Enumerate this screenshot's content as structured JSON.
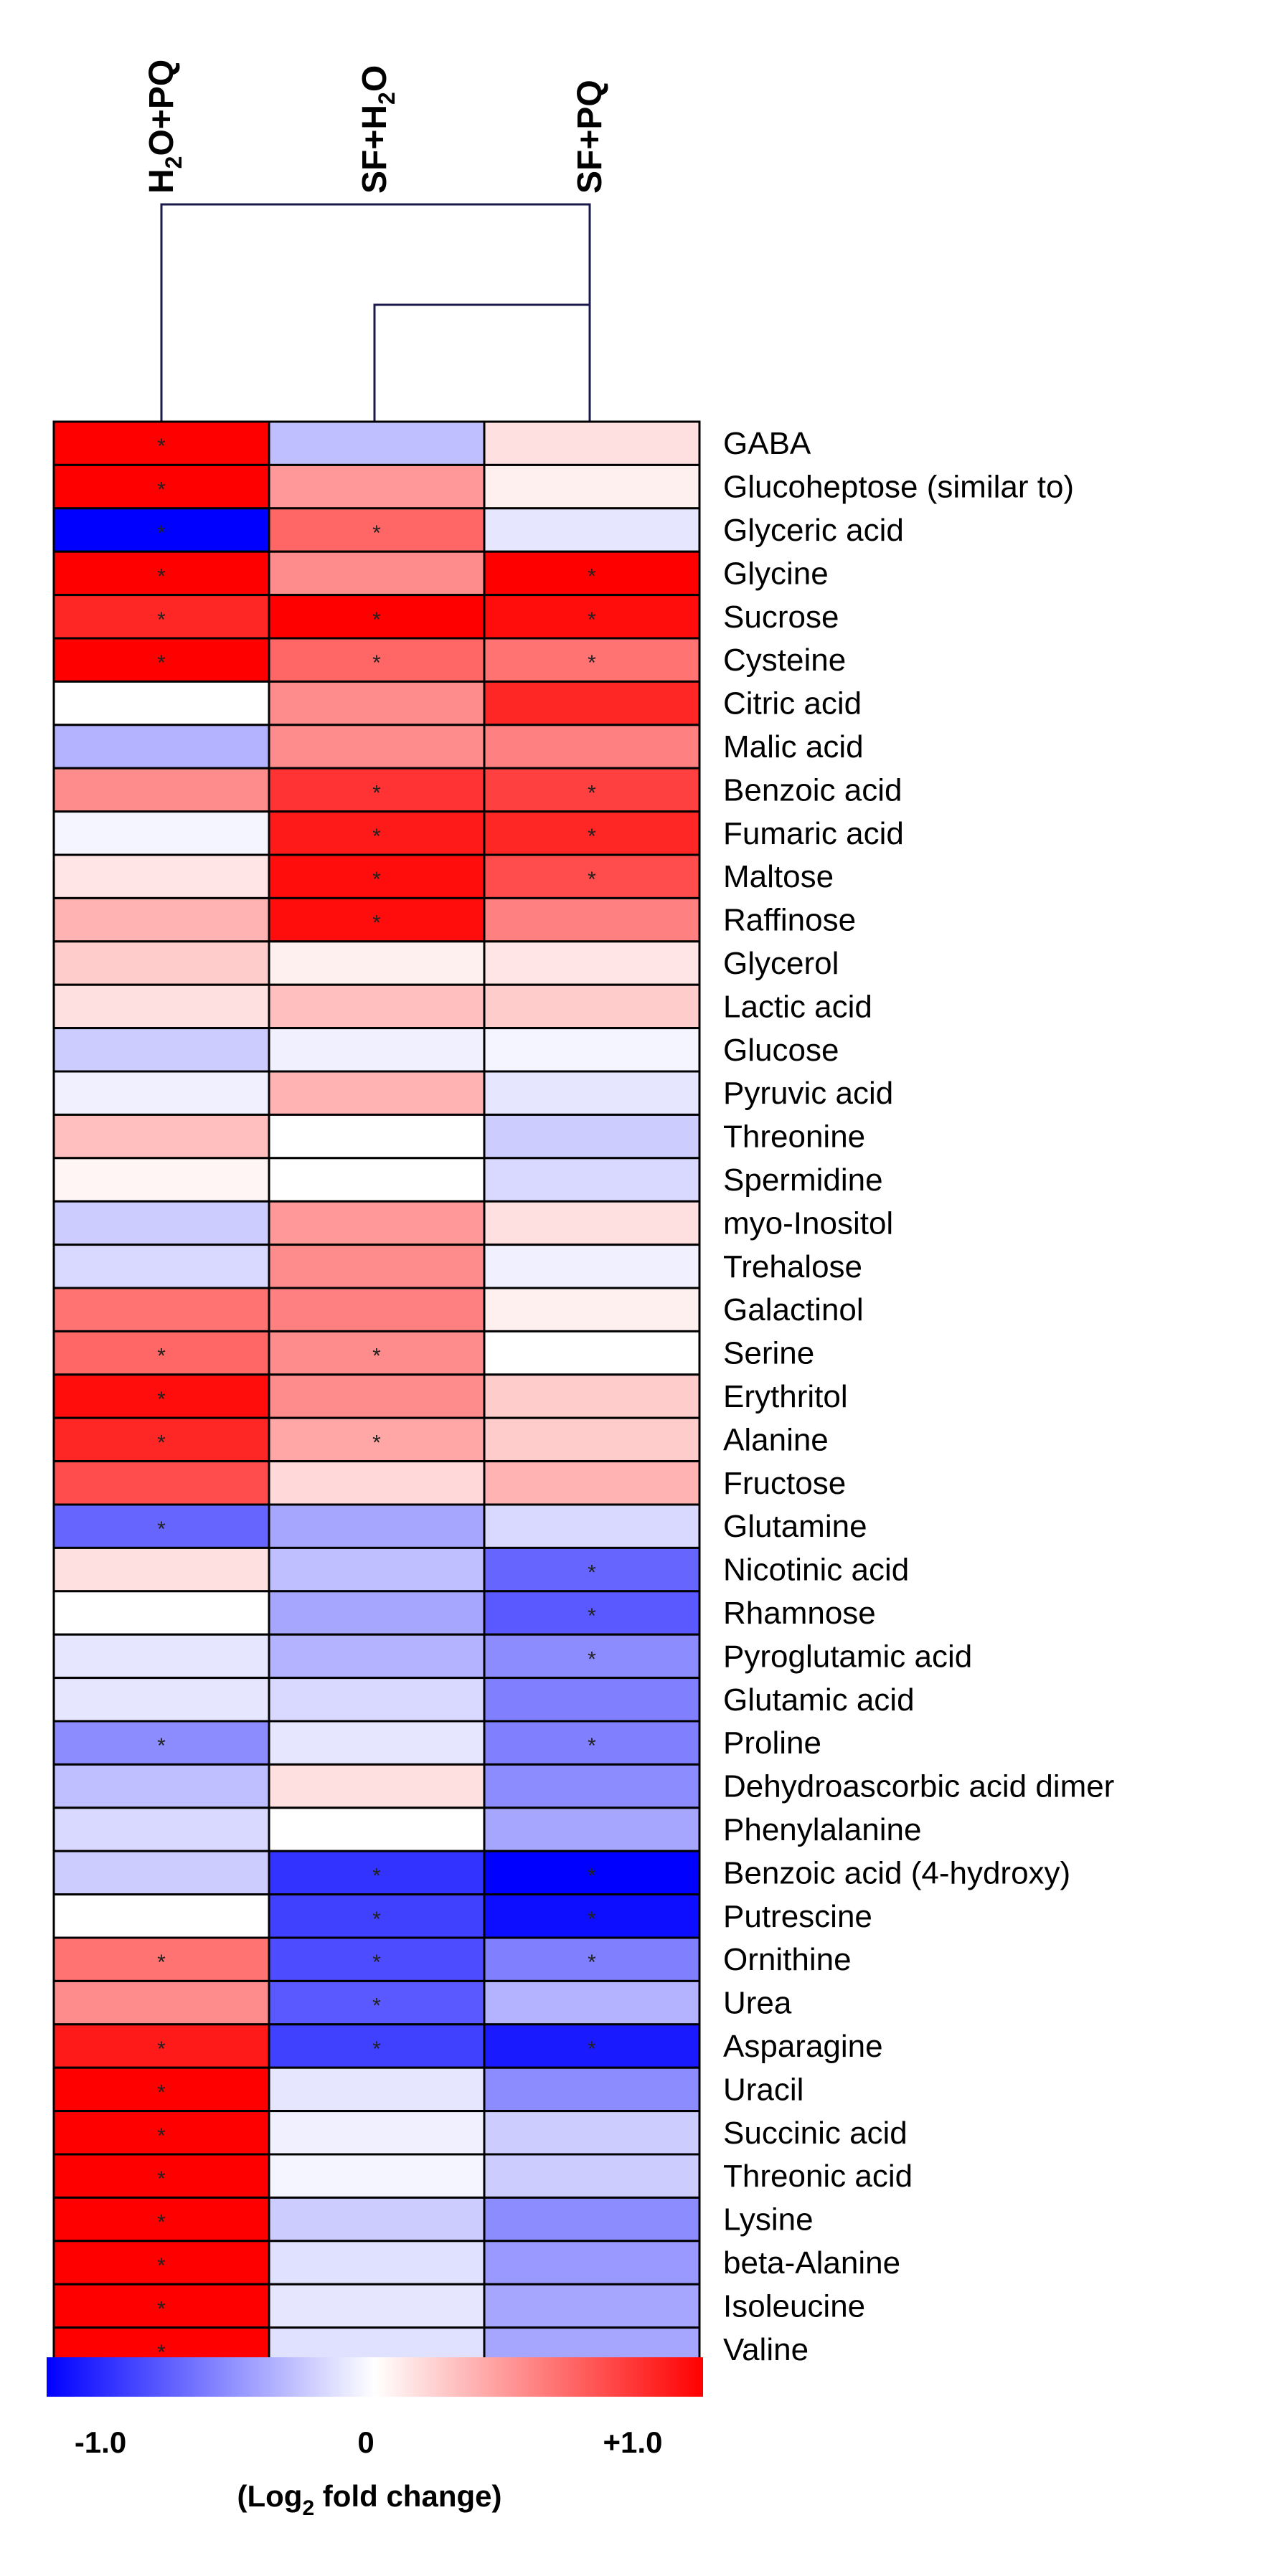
{
  "chart_data": {
    "type": "heatmap",
    "columns": [
      "H2O+PQ",
      "SF+H2O",
      "SF+PQ"
    ],
    "column_labels": [
      {
        "main": "H",
        "sub": "2",
        "rest": "O+PQ"
      },
      {
        "main": "SF+H",
        "sub": "2",
        "rest": "O"
      },
      {
        "main": "SF+PQ",
        "sub": "",
        "rest": ""
      }
    ],
    "rows": [
      "GABA",
      "Glucoheptose (similar to)",
      "Glyceric acid",
      "Glycine",
      "Sucrose",
      "Cysteine",
      "Citric acid",
      "Malic acid",
      "Benzoic acid",
      "Fumaric acid",
      "Maltose",
      "Raffinose",
      "Glycerol",
      "Lactic acid",
      "Glucose",
      "Pyruvic acid",
      "Threonine",
      "Spermidine",
      "myo-Inositol",
      "Trehalose",
      "Galactinol",
      "Serine",
      "Erythritol",
      "Alanine",
      "Fructose",
      "Glutamine",
      "Nicotinic acid",
      "Rhamnose",
      "Pyroglutamic acid",
      "Glutamic acid",
      "Proline",
      "Dehydroascorbic acid dimer",
      "Phenylalanine",
      "Benzoic acid (4-hydroxy)",
      "Putrescine",
      "Ornithine",
      "Urea",
      "Asparagine",
      "Uracil",
      "Succinic acid",
      "Threonic acid",
      "Lysine",
      "beta-Alanine",
      "Isoleucine",
      "Valine"
    ],
    "values": [
      [
        1.0,
        -0.25,
        0.12
      ],
      [
        1.0,
        0.4,
        0.06
      ],
      [
        -1.0,
        0.6,
        -0.1
      ],
      [
        1.0,
        0.45,
        1.0
      ],
      [
        0.85,
        1.0,
        0.95
      ],
      [
        1.0,
        0.6,
        0.55
      ],
      [
        0.0,
        0.45,
        0.85
      ],
      [
        -0.3,
        0.45,
        0.5
      ],
      [
        0.45,
        0.8,
        0.75
      ],
      [
        -0.04,
        0.9,
        0.85
      ],
      [
        0.1,
        0.95,
        0.7
      ],
      [
        0.3,
        0.95,
        0.5
      ],
      [
        0.2,
        0.06,
        0.1
      ],
      [
        0.12,
        0.25,
        0.2
      ],
      [
        -0.2,
        -0.06,
        -0.04
      ],
      [
        -0.06,
        0.3,
        -0.1
      ],
      [
        0.25,
        0.0,
        -0.2
      ],
      [
        0.04,
        0.0,
        -0.15
      ],
      [
        -0.2,
        0.4,
        0.12
      ],
      [
        -0.15,
        0.45,
        -0.06
      ],
      [
        0.55,
        0.5,
        0.06
      ],
      [
        0.6,
        0.45,
        0.0
      ],
      [
        0.95,
        0.45,
        0.2
      ],
      [
        0.85,
        0.35,
        0.2
      ],
      [
        0.7,
        0.15,
        0.3
      ],
      [
        -0.6,
        -0.35,
        -0.15
      ],
      [
        0.12,
        -0.25,
        -0.6
      ],
      [
        0.0,
        -0.35,
        -0.65
      ],
      [
        -0.1,
        -0.3,
        -0.45
      ],
      [
        -0.1,
        -0.15,
        -0.5
      ],
      [
        -0.45,
        -0.1,
        -0.5
      ],
      [
        -0.25,
        0.12,
        -0.45
      ],
      [
        -0.15,
        0.0,
        -0.35
      ],
      [
        -0.2,
        -0.8,
        -1.0
      ],
      [
        0.0,
        -0.75,
        -0.95
      ],
      [
        0.55,
        -0.7,
        -0.5
      ],
      [
        0.45,
        -0.65,
        -0.3
      ],
      [
        0.9,
        -0.75,
        -0.9
      ],
      [
        1.0,
        -0.1,
        -0.45
      ],
      [
        1.0,
        -0.06,
        -0.2
      ],
      [
        1.0,
        -0.04,
        -0.2
      ],
      [
        1.0,
        -0.2,
        -0.45
      ],
      [
        1.0,
        -0.12,
        -0.4
      ],
      [
        1.0,
        -0.1,
        -0.35
      ],
      [
        1.0,
        -0.12,
        -0.35
      ]
    ],
    "significant": [
      [
        1,
        0,
        0
      ],
      [
        1,
        0,
        0
      ],
      [
        1,
        1,
        0
      ],
      [
        1,
        0,
        1
      ],
      [
        1,
        1,
        1
      ],
      [
        1,
        1,
        1
      ],
      [
        0,
        0,
        0
      ],
      [
        0,
        0,
        0
      ],
      [
        0,
        1,
        1
      ],
      [
        0,
        1,
        1
      ],
      [
        0,
        1,
        1
      ],
      [
        0,
        1,
        0
      ],
      [
        0,
        0,
        0
      ],
      [
        0,
        0,
        0
      ],
      [
        0,
        0,
        0
      ],
      [
        0,
        0,
        0
      ],
      [
        0,
        0,
        0
      ],
      [
        0,
        0,
        0
      ],
      [
        0,
        0,
        0
      ],
      [
        0,
        0,
        0
      ],
      [
        0,
        0,
        0
      ],
      [
        1,
        1,
        0
      ],
      [
        1,
        0,
        0
      ],
      [
        1,
        1,
        0
      ],
      [
        0,
        0,
        0
      ],
      [
        1,
        0,
        0
      ],
      [
        0,
        0,
        1
      ],
      [
        0,
        0,
        1
      ],
      [
        0,
        0,
        1
      ],
      [
        0,
        0,
        0
      ],
      [
        1,
        0,
        1
      ],
      [
        0,
        0,
        0
      ],
      [
        0,
        0,
        0
      ],
      [
        0,
        1,
        1
      ],
      [
        0,
        1,
        1
      ],
      [
        1,
        1,
        1
      ],
      [
        0,
        1,
        0
      ],
      [
        1,
        1,
        1
      ],
      [
        1,
        0,
        0
      ],
      [
        1,
        0,
        0
      ],
      [
        1,
        0,
        0
      ],
      [
        1,
        0,
        0
      ],
      [
        1,
        0,
        0
      ],
      [
        1,
        0,
        0
      ],
      [
        1,
        0,
        0
      ]
    ],
    "significance_marker": "*",
    "color_scale": {
      "min": -1.0,
      "max": 1.0,
      "low_color": "#0000ff",
      "mid_color": "#ffffff",
      "high_color": "#ff0000",
      "tick_labels": [
        "-1.0",
        "0",
        "+1.0"
      ],
      "label_main": "(Log",
      "label_sub": "2",
      "label_rest": " fold change)"
    },
    "dendrogram": {
      "clusters": [
        [
          "SF+H2O",
          "SF+PQ"
        ],
        [
          "H2O+PQ",
          [
            "SF+H2O",
            "SF+PQ"
          ]
        ]
      ]
    },
    "legend_position": "bottom"
  }
}
